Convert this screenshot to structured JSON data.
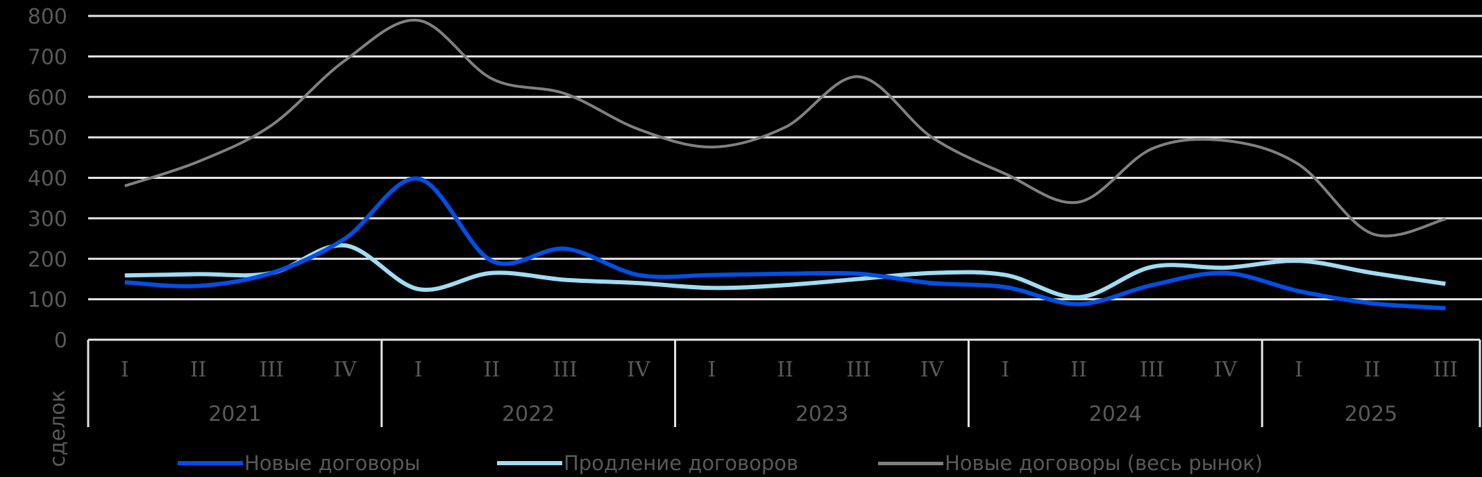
{
  "chart_data": {
    "type": "line",
    "title": "",
    "ylabel": "сделок",
    "xlabel": "",
    "ylim": [
      0,
      800
    ],
    "yticks": [
      0,
      100,
      200,
      300,
      400,
      500,
      600,
      700,
      800
    ],
    "grid": true,
    "legend_position": "bottom",
    "smooth": true,
    "categories": [
      "2021 I",
      "2021 II",
      "2021 III",
      "2021 IV",
      "2022 I",
      "2022 II",
      "2022 III",
      "2022 IV",
      "2023 I",
      "2023 II",
      "2023 III",
      "2023 IV",
      "2024 I",
      "2024 II",
      "2024 III",
      "2024 IV",
      "2025 I",
      "2025 II",
      "2025 III"
    ],
    "x_groups": [
      {
        "year": "2021",
        "quarters": [
          "I",
          "II",
          "III",
          "IV"
        ]
      },
      {
        "year": "2022",
        "quarters": [
          "I",
          "II",
          "III",
          "IV"
        ]
      },
      {
        "year": "2023",
        "quarters": [
          "I",
          "II",
          "III",
          "IV"
        ]
      },
      {
        "year": "2024",
        "quarters": [
          "I",
          "II",
          "III",
          "IV"
        ]
      },
      {
        "year": "2025",
        "quarters": [
          "I",
          "II",
          "III"
        ]
      }
    ],
    "series": [
      {
        "name": "Новые договоры",
        "color": "#0050E6",
        "width": 6,
        "values": [
          142,
          133,
          165,
          250,
          398,
          195,
          225,
          160,
          160,
          163,
          163,
          140,
          130,
          88,
          135,
          165,
          120,
          90,
          78
        ]
      },
      {
        "name": "Продление договоров",
        "color": "#A0DCF2",
        "width": 6,
        "values": [
          159,
          162,
          165,
          233,
          125,
          165,
          148,
          140,
          128,
          135,
          150,
          165,
          160,
          105,
          180,
          178,
          195,
          165,
          138
        ]
      },
      {
        "name": "Новые договоры (весь рынок)",
        "color": "#808080",
        "width": 4,
        "values": [
          380,
          440,
          530,
          690,
          789,
          645,
          608,
          520,
          476,
          525,
          650,
          500,
          410,
          340,
          472,
          492,
          433,
          262,
          298
        ]
      }
    ]
  },
  "colors": {
    "background": "#000000",
    "gridline": "#E6E6E6",
    "text": "#595959"
  }
}
